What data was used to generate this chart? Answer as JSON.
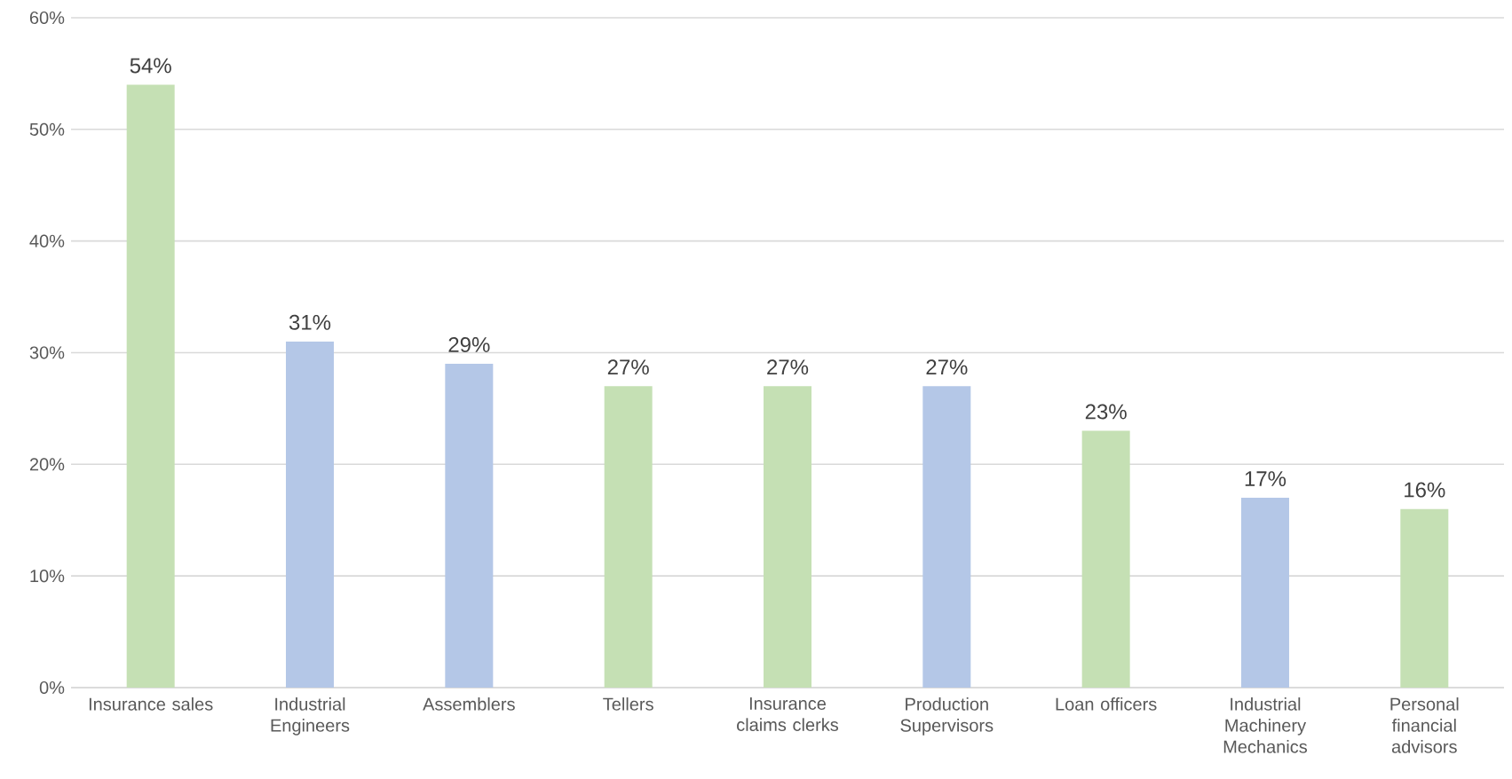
{
  "chart_data": {
    "type": "bar",
    "categories": [
      "Insurance sales",
      "Industrial Engineers",
      "Assemblers",
      "Tellers",
      "Insurance claims clerks",
      "Production Supervisors",
      "Loan officers",
      "Industrial Machinery Mechanics",
      "Personal financial advisors"
    ],
    "values": [
      54,
      31,
      29,
      27,
      27,
      27,
      23,
      17,
      16
    ],
    "colors": [
      "#c5e0b4",
      "#b4c7e7",
      "#b4c7e7",
      "#c5e0b4",
      "#c5e0b4",
      "#b4c7e7",
      "#c5e0b4",
      "#b4c7e7",
      "#c5e0b4"
    ],
    "value_labels": [
      "54%",
      "31%",
      "29%",
      "27%",
      "27%",
      "27%",
      "23%",
      "17%",
      "16%"
    ],
    "ylim": [
      0,
      60
    ],
    "yticks": [
      {
        "value": 0,
        "label": "0%"
      },
      {
        "value": 10,
        "label": "10%"
      },
      {
        "value": 20,
        "label": "20%"
      },
      {
        "value": 30,
        "label": "30%"
      },
      {
        "value": 40,
        "label": "40%"
      },
      {
        "value": 50,
        "label": "50%"
      },
      {
        "value": 60,
        "label": "60%"
      }
    ],
    "grid": "y"
  }
}
